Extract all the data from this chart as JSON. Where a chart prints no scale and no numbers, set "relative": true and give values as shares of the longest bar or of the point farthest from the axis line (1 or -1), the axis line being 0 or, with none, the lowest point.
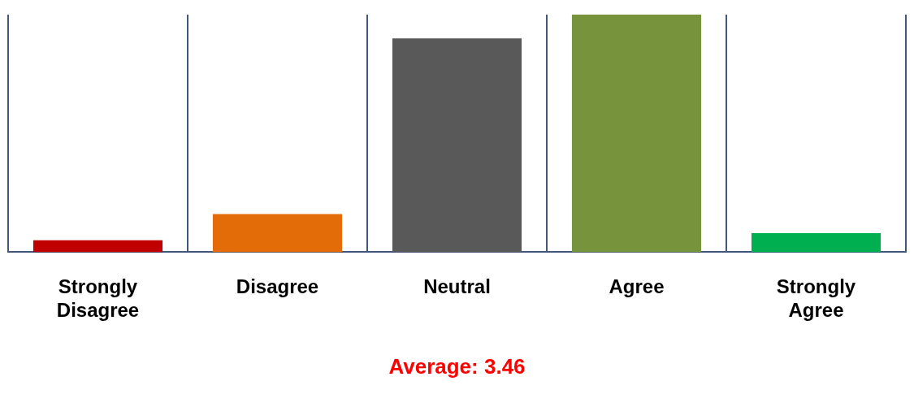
{
  "chart_data": {
    "type": "bar",
    "relative": true,
    "categories": [
      "Strongly Disagree",
      "Disagree",
      "Neutral",
      "Agree",
      "Strongly Agree"
    ],
    "values": [
      0.05,
      0.16,
      0.9,
      1,
      0.08
    ],
    "colors": [
      "#c00000",
      "#e36c09",
      "#595959",
      "#77933c",
      "#00b050"
    ],
    "grid": "x",
    "legend": false,
    "annotations": [
      "Average: 3.46"
    ]
  }
}
